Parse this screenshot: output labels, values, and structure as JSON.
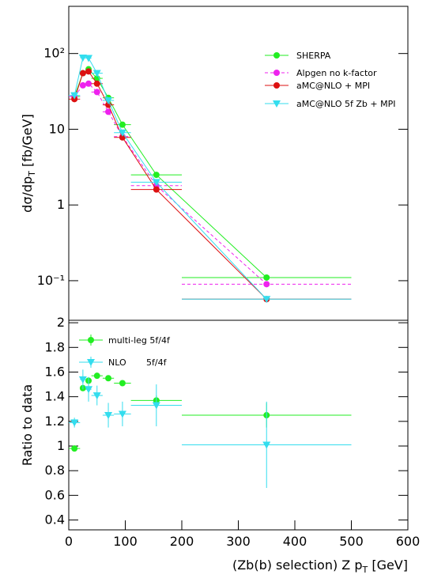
{
  "chart_data": [
    {
      "type": "line",
      "ylabel_parts": [
        "dσ/dp",
        "T",
        " [fb/GeV]"
      ],
      "x": [
        10,
        25,
        35,
        50,
        70,
        95,
        155,
        350
      ],
      "bins": [
        0,
        20,
        30,
        40,
        60,
        80,
        110,
        200,
        500
      ],
      "xlim": [
        0,
        600
      ],
      "ylim": [
        0.03,
        420
      ],
      "log_y": true,
      "yticks": [
        {
          "value": 0.1,
          "label": "10⁻¹"
        },
        1,
        10,
        {
          "value": 100,
          "label": "10²"
        }
      ],
      "series": [
        {
          "name": "SHERPA",
          "color": "#22ee22",
          "marker": "circle",
          "dash": false,
          "values": [
            27,
            55,
            62,
            47,
            26,
            11.5,
            2.5,
            0.11
          ]
        },
        {
          "name": "Alpgen no k-factor",
          "color": "#ee22ee",
          "marker": "circle",
          "dash": true,
          "values": [
            27,
            38,
            40,
            31,
            17,
            8,
            1.8,
            0.09
          ]
        },
        {
          "name": "aMC@NLO + MPI",
          "color": "#dd1111",
          "marker": "circle",
          "dash": false,
          "values": [
            25,
            55,
            58,
            40,
            21,
            7.8,
            1.6,
            0.057
          ]
        },
        {
          "name": "aMC@NLO 5f Zb + MPI",
          "color": "#33ddee",
          "marker": "triangle",
          "dash": false,
          "values": [
            28,
            88,
            87,
            55,
            24,
            9,
            2.0,
            0.057
          ]
        }
      ]
    },
    {
      "type": "scatter",
      "ylabel": "Ratio to data",
      "xlabel_parts": [
        "(Zb(b) selection) Z p",
        "T",
        " [GeV]"
      ],
      "x": [
        10,
        25,
        35,
        50,
        70,
        95,
        155,
        350
      ],
      "bins": [
        0,
        20,
        30,
        40,
        60,
        80,
        110,
        200,
        500
      ],
      "xlim": [
        0,
        600
      ],
      "xticks": [
        0,
        100,
        200,
        300,
        400,
        500,
        600
      ],
      "ylim": [
        0.32,
        2.02
      ],
      "yticks": [
        0.4,
        0.6,
        0.8,
        1,
        1.2,
        1.4,
        1.6,
        1.8,
        2
      ],
      "annotation": "5f/4f",
      "series": [
        {
          "name": "multi-leg 5f/4f",
          "color": "#22ee22",
          "marker": "circle",
          "values": [
            0.98,
            1.47,
            1.53,
            1.57,
            1.55,
            1.51,
            1.37,
            1.25
          ],
          "errors": [
            0.02,
            0.02,
            0.02,
            0.02,
            0.02,
            0.02,
            0.04,
            0.1
          ]
        },
        {
          "name": "NLO",
          "color": "#33ddee",
          "marker": "triangle",
          "values": [
            1.19,
            1.54,
            1.46,
            1.41,
            1.25,
            1.26,
            1.33,
            1.01
          ],
          "errors": [
            0.04,
            0.08,
            0.1,
            0.08,
            0.1,
            0.1,
            0.17,
            0.35
          ]
        }
      ]
    }
  ]
}
